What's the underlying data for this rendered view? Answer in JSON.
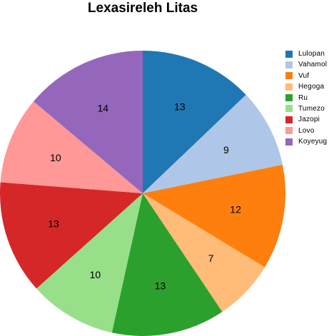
{
  "chart_data": {
    "type": "pie",
    "title": "Lexasireleh Litas",
    "categories": [
      "Lulopan",
      "Vahamol",
      "Vuf",
      "Hegoga",
      "Ru",
      "Tumezo",
      "Jazopi",
      "Lovo",
      "Koyeyug"
    ],
    "values": [
      13,
      9,
      12,
      7,
      13,
      10,
      13,
      10,
      14
    ],
    "colors": [
      "#1f77b4",
      "#aec7e8",
      "#ff7f0e",
      "#ffbb78",
      "#2ca02c",
      "#98df8a",
      "#d62728",
      "#ff9896",
      "#9467bd"
    ],
    "start_angle": "top (12 o'clock)",
    "direction": "clockwise",
    "legend": "right",
    "data_labels": "inside"
  }
}
